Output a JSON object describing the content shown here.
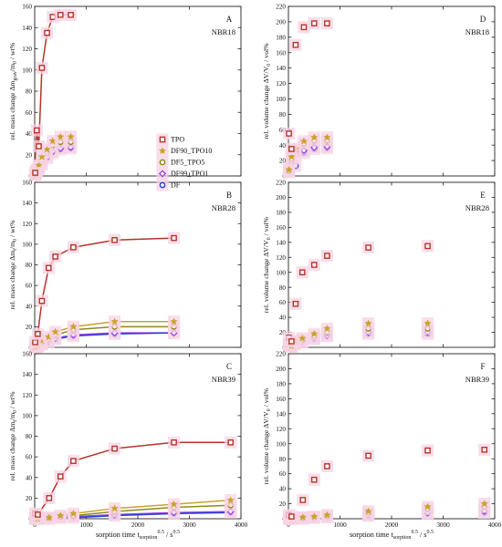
{
  "colors": {
    "TPO": "#b5332a",
    "DF90_TPO10": "#c9a227",
    "DF5_TPO5": "#8c8a1c",
    "DF99_TPO1": "#9b3fe0",
    "DF": "#2a3fd4",
    "halo": "#f7d3e4"
  },
  "x_axis": {
    "label_main": "sorption time t",
    "label_sub": "sorption",
    "label_sup1": "0.5",
    "label_unit": "/ s",
    "label_sup2": "0.5",
    "ticks": [
      "0",
      "1000",
      "2000",
      "3000",
      "4000"
    ]
  },
  "legend": [
    "TPO",
    "DF90_TPO10",
    "DF5_TPO5",
    "DF99_TPO1",
    "DF"
  ],
  "chart_data": [
    {
      "type": "scatter",
      "letter": "A",
      "material": "NBR18",
      "ylabel": "rel. mass change Δm",
      "ylabel_sub": "grav",
      "ylabel_rest": "/m",
      "ylabel_sub2": "0",
      "ylabel_unit": " / wt%",
      "xlim": [
        0,
        4000
      ],
      "ylim": [
        0,
        160
      ],
      "yticks": [
        "0",
        "20",
        "40",
        "60",
        "80",
        "100",
        "120",
        "140",
        "160"
      ],
      "xticks": [],
      "has_fit": true,
      "series": [
        {
          "name": "TPO",
          "x": [
            10,
            40,
            80,
            140,
            240,
            350,
            500,
            700
          ],
          "y": [
            3,
            43,
            28,
            102,
            135,
            150,
            152,
            152
          ]
        },
        {
          "name": "DF90_TPO10",
          "x": [
            10,
            40,
            80,
            140,
            240,
            350,
            500,
            700
          ],
          "y": [
            1,
            6,
            10,
            18,
            25,
            33,
            37,
            37
          ]
        },
        {
          "name": "DF5_TPO5",
          "x": [
            10,
            40,
            80,
            140,
            240,
            350,
            500,
            700
          ],
          "y": [
            1,
            5,
            9,
            15,
            22,
            29,
            32,
            32
          ]
        },
        {
          "name": "DF99_TPO1",
          "x": [
            10,
            40,
            80,
            140,
            240,
            350,
            500,
            700
          ],
          "y": [
            1,
            4,
            8,
            12,
            18,
            23,
            26,
            27
          ]
        },
        {
          "name": "DF",
          "x": [
            10,
            40,
            80,
            140,
            240,
            350,
            500,
            700
          ],
          "y": [
            1,
            4,
            7,
            11,
            17,
            22,
            25,
            26
          ]
        }
      ]
    },
    {
      "type": "scatter",
      "letter": "D",
      "material": "NBR18",
      "ylabel": "rel. volume change ΔV/V",
      "ylabel_sub": "0",
      "ylabel_rest": "",
      "ylabel_sub2": "",
      "ylabel_unit": " / vol%",
      "xlim": [
        0,
        4000
      ],
      "ylim": [
        0,
        220
      ],
      "yticks": [
        "0",
        "20",
        "40",
        "60",
        "80",
        "100",
        "120",
        "140",
        "160",
        "180",
        "200",
        "220"
      ],
      "xticks": [],
      "has_fit": false,
      "series": [
        {
          "name": "TPO",
          "x": [
            10,
            60,
            140,
            300,
            500,
            750
          ],
          "y": [
            55,
            35,
            170,
            193,
            198,
            198
          ]
        },
        {
          "name": "DF90_TPO10",
          "x": [
            10,
            60,
            140,
            300,
            500,
            750
          ],
          "y": [
            8,
            25,
            35,
            45,
            50,
            50
          ]
        },
        {
          "name": "DF5_TPO5",
          "x": [
            10,
            60,
            140,
            300,
            500,
            750
          ],
          "y": [
            7,
            22,
            32,
            42,
            46,
            46
          ]
        },
        {
          "name": "DF99_TPO1",
          "x": [
            10,
            60,
            140,
            300,
            500,
            750
          ],
          "y": [
            6,
            18,
            27,
            33,
            37,
            38
          ]
        },
        {
          "name": "DF",
          "x": [
            10,
            60,
            140,
            300,
            500,
            750
          ],
          "y": [
            5,
            15,
            13,
            30,
            35,
            36
          ]
        }
      ]
    },
    {
      "type": "scatter",
      "letter": "B",
      "material": "NBR28",
      "ylabel": "rel. mass change Δm",
      "ylabel_sub": "t",
      "ylabel_rest": "/m",
      "ylabel_sub2": "0",
      "ylabel_unit": " / wt%",
      "xlim": [
        0,
        4000
      ],
      "ylim": [
        0,
        160
      ],
      "yticks": [
        "0",
        "20",
        "40",
        "60",
        "80",
        "100",
        "120",
        "140",
        "160"
      ],
      "xticks": [],
      "has_fit": true,
      "series": [
        {
          "name": "TPO",
          "x": [
            10,
            60,
            140,
            270,
            400,
            750,
            1550,
            2700
          ],
          "y": [
            5,
            13,
            45,
            77,
            88,
            97,
            104,
            106
          ]
        },
        {
          "name": "DF90_TPO10",
          "x": [
            10,
            60,
            140,
            270,
            400,
            750,
            1550,
            2700
          ],
          "y": [
            0,
            2,
            6,
            10,
            15,
            20,
            25,
            25
          ]
        },
        {
          "name": "DF5_TPO5",
          "x": [
            10,
            60,
            140,
            270,
            400,
            750,
            1550,
            2700
          ],
          "y": [
            0,
            1,
            5,
            8,
            12,
            17,
            20,
            20
          ]
        },
        {
          "name": "DF99_TPO1",
          "x": [
            10,
            60,
            140,
            270,
            400,
            750,
            1550,
            2700
          ],
          "y": [
            0,
            1,
            3,
            6,
            9,
            12,
            14,
            14
          ]
        },
        {
          "name": "DF",
          "x": [
            10,
            60,
            140,
            270,
            400,
            750,
            1550,
            2700
          ],
          "y": [
            0,
            1,
            3,
            5,
            8,
            11,
            13,
            14
          ]
        }
      ]
    },
    {
      "type": "scatter",
      "letter": "E",
      "material": "NBR28",
      "ylabel": "rel. volume change ΔV/V",
      "ylabel_sub": "0",
      "ylabel_rest": "",
      "ylabel_sub2": "",
      "ylabel_unit": " / vol%",
      "xlim": [
        0,
        4000
      ],
      "ylim": [
        0,
        220
      ],
      "yticks": [
        "0",
        "20",
        "40",
        "60",
        "80",
        "100",
        "120",
        "140",
        "160",
        "180",
        "200",
        "220"
      ],
      "xticks": [],
      "has_fit": false,
      "series": [
        {
          "name": "TPO",
          "x": [
            10,
            60,
            140,
            270,
            500,
            750,
            1550,
            2700
          ],
          "y": [
            13,
            8,
            58,
            100,
            110,
            122,
            133,
            135
          ]
        },
        {
          "name": "DF90_TPO10",
          "x": [
            10,
            60,
            140,
            270,
            500,
            750,
            1550,
            2700
          ],
          "y": [
            3,
            2,
            8,
            12,
            18,
            25,
            32,
            32
          ]
        },
        {
          "name": "DF5_TPO5",
          "x": [
            10,
            60,
            140,
            270,
            500,
            750,
            1550,
            2700
          ],
          "y": [
            3,
            2,
            7,
            10,
            15,
            20,
            25,
            25
          ]
        },
        {
          "name": "DF99_TPO1",
          "x": [
            10,
            60,
            140,
            270,
            500,
            750,
            1550,
            2700
          ],
          "y": [
            2,
            1,
            5,
            8,
            12,
            16,
            20,
            20
          ]
        },
        {
          "name": "DF",
          "x": [
            10,
            60,
            140,
            270,
            500,
            750,
            1550,
            2700
          ],
          "y": [
            2,
            1,
            4,
            7,
            11,
            15,
            18,
            18
          ]
        }
      ]
    },
    {
      "type": "scatter",
      "letter": "C",
      "material": "NBR39",
      "ylabel": "rel. mass change Δm",
      "ylabel_sub": "t",
      "ylabel_rest": "/m",
      "ylabel_sub2": "0",
      "ylabel_unit": " / wt%",
      "xlim": [
        0,
        4000
      ],
      "ylim": [
        0,
        160
      ],
      "yticks": [
        "0",
        "20",
        "40",
        "60",
        "80",
        "100",
        "120",
        "140",
        "160"
      ],
      "xticks": [
        "0",
        "1000",
        "2000",
        "3000",
        "4000"
      ],
      "has_fit": true,
      "series": [
        {
          "name": "TPO",
          "x": [
            10,
            60,
            280,
            500,
            750,
            1550,
            2700,
            3800
          ],
          "y": [
            5,
            4,
            20,
            41,
            56,
            68,
            74,
            74
          ]
        },
        {
          "name": "DF90_TPO10",
          "x": [
            10,
            60,
            280,
            500,
            750,
            1550,
            2700,
            3800
          ],
          "y": [
            0,
            0,
            1,
            3,
            5,
            10,
            14,
            18
          ]
        },
        {
          "name": "DF5_TPO5",
          "x": [
            10,
            60,
            280,
            500,
            750,
            1550,
            2700,
            3800
          ],
          "y": [
            0,
            0,
            1,
            2,
            3,
            7,
            11,
            13
          ]
        },
        {
          "name": "DF99_TPO1",
          "x": [
            10,
            60,
            280,
            500,
            750,
            1550,
            2700,
            3800
          ],
          "y": [
            0,
            0,
            0,
            1,
            2,
            4,
            6,
            7
          ]
        },
        {
          "name": "DF",
          "x": [
            10,
            60,
            280,
            500,
            750,
            1550,
            2700,
            3800
          ],
          "y": [
            0,
            0,
            0,
            1,
            1,
            3,
            5,
            6
          ]
        }
      ]
    },
    {
      "type": "scatter",
      "letter": "F",
      "material": "NBR39",
      "ylabel": "rel. volume change ΔV/V",
      "ylabel_sub": "0",
      "ylabel_rest": "",
      "ylabel_sub2": "",
      "ylabel_unit": " / vol%",
      "xlim": [
        0,
        4000
      ],
      "ylim": [
        0,
        220
      ],
      "yticks": [
        "0",
        "20",
        "40",
        "60",
        "80",
        "100",
        "120",
        "140",
        "160",
        "180",
        "200",
        "220"
      ],
      "xticks": [
        "0",
        "1000",
        "2000",
        "3000",
        "4000"
      ],
      "has_fit": false,
      "series": [
        {
          "name": "TPO",
          "x": [
            10,
            60,
            280,
            500,
            750,
            1550,
            2700,
            3800
          ],
          "y": [
            5,
            3,
            25,
            52,
            70,
            84,
            91,
            92
          ]
        },
        {
          "name": "DF90_TPO10",
          "x": [
            10,
            60,
            280,
            500,
            750,
            1550,
            2700,
            3800
          ],
          "y": [
            1,
            0,
            2,
            3,
            5,
            10,
            16,
            20
          ]
        },
        {
          "name": "DF5_TPO5",
          "x": [
            10,
            60,
            280,
            500,
            750,
            1550,
            2700,
            3800
          ],
          "y": [
            1,
            0,
            1,
            2,
            4,
            8,
            13,
            16
          ]
        },
        {
          "name": "DF99_TPO1",
          "x": [
            10,
            60,
            280,
            500,
            750,
            1550,
            2700,
            3800
          ],
          "y": [
            0,
            0,
            1,
            2,
            3,
            5,
            8,
            10
          ]
        },
        {
          "name": "DF",
          "x": [
            10,
            60,
            280,
            500,
            750,
            1550,
            2700,
            3800
          ],
          "y": [
            0,
            0,
            0,
            1,
            2,
            4,
            7,
            8
          ]
        }
      ]
    }
  ]
}
